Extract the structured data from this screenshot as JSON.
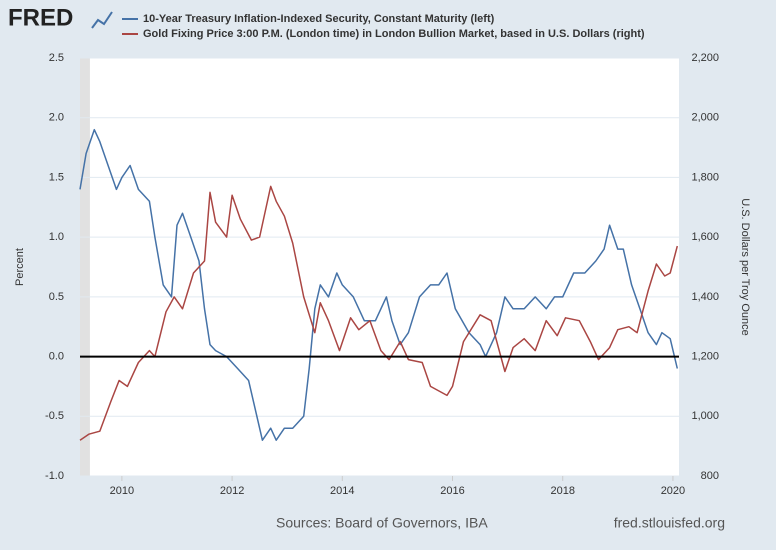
{
  "logo": "FRED",
  "sources": "Sources: Board of Governors, IBA",
  "site": "fred.stlouisfed.org",
  "chart_data": {
    "type": "line",
    "ylabel": "Percent",
    "y2label": "U.S. Dollars per Troy Ounce",
    "xlim": [
      2009.24,
      2020.11
    ],
    "xticks": [
      2010,
      2012,
      2014,
      2016,
      2018,
      2020
    ],
    "ylim": [
      -1.0,
      2.5
    ],
    "yticks": [
      {
        "value": -1.0,
        "label": "-1.0"
      },
      {
        "value": -0.5,
        "label": "-0.5"
      },
      {
        "value": 0,
        "label": "0.0"
      },
      {
        "value": 0.5,
        "label": "0.5"
      },
      {
        "value": 1.0,
        "label": "1.0"
      },
      {
        "value": 1.5,
        "label": "1.5"
      },
      {
        "value": 2.0,
        "label": "2.0"
      },
      {
        "value": 2.5,
        "label": "2.5"
      }
    ],
    "y2lim": [
      800,
      2200
    ],
    "y2ticks": [
      800,
      {
        "value": 1000,
        "label": "1,000"
      },
      {
        "value": 1200,
        "label": "1,200"
      },
      {
        "value": 1400,
        "label": "1,400"
      },
      {
        "value": 1600,
        "label": "1,600"
      },
      {
        "value": 1800,
        "label": "1,800"
      },
      {
        "value": 2000,
        "label": "2,000"
      },
      {
        "value": 2200,
        "label": "2,200"
      }
    ],
    "grid": true,
    "hline": {
      "value": 0,
      "color": "#000000"
    },
    "shading": [
      {
        "start": 2009.24,
        "end": 2009.42,
        "color": "#e1e1e1"
      }
    ],
    "series": [
      {
        "name": "10-Year Treasury Inflation-Indexed Security, Constant Maturity (left)",
        "color": "#4572a7",
        "x": [
          2009.24,
          2009.35,
          2009.5,
          2009.6,
          2009.75,
          2009.9,
          2010.0,
          2010.15,
          2010.3,
          2010.5,
          2010.6,
          2010.75,
          2010.9,
          2011.0,
          2011.1,
          2011.25,
          2011.4,
          2011.5,
          2011.6,
          2011.7,
          2011.9,
          2012.1,
          2012.3,
          2012.4,
          2012.55,
          2012.7,
          2012.8,
          2012.95,
          2013.1,
          2013.3,
          2013.4,
          2013.5,
          2013.6,
          2013.75,
          2013.9,
          2014.0,
          2014.2,
          2014.4,
          2014.6,
          2014.8,
          2014.9,
          2015.05,
          2015.2,
          2015.4,
          2015.6,
          2015.75,
          2015.9,
          2016.05,
          2016.3,
          2016.5,
          2016.6,
          2016.8,
          2016.95,
          2017.1,
          2017.3,
          2017.5,
          2017.7,
          2017.85,
          2018.0,
          2018.2,
          2018.4,
          2018.6,
          2018.75,
          2018.85,
          2019.0,
          2019.1,
          2019.25,
          2019.4,
          2019.55,
          2019.7,
          2019.8,
          2019.95,
          2020.08
        ],
        "values": [
          1.4,
          1.7,
          1.9,
          1.8,
          1.6,
          1.4,
          1.5,
          1.6,
          1.4,
          1.3,
          1.0,
          0.6,
          0.5,
          1.1,
          1.2,
          1.0,
          0.8,
          0.4,
          0.1,
          0.05,
          0.0,
          -0.1,
          -0.2,
          -0.4,
          -0.7,
          -0.6,
          -0.7,
          -0.6,
          -0.6,
          -0.5,
          -0.1,
          0.4,
          0.6,
          0.5,
          0.7,
          0.6,
          0.5,
          0.3,
          0.3,
          0.5,
          0.3,
          0.1,
          0.2,
          0.5,
          0.6,
          0.6,
          0.7,
          0.4,
          0.2,
          0.1,
          0.0,
          0.2,
          0.5,
          0.4,
          0.4,
          0.5,
          0.4,
          0.5,
          0.5,
          0.7,
          0.7,
          0.8,
          0.9,
          1.1,
          0.9,
          0.9,
          0.6,
          0.4,
          0.2,
          0.1,
          0.2,
          0.15,
          -0.1
        ]
      },
      {
        "name": "Gold Fixing Price 3:00 P.M. (London time) in London Bullion Market, based in U.S. Dollars (right)",
        "color": "#aa4643",
        "axis": "y2",
        "x": [
          2009.24,
          2009.4,
          2009.6,
          2009.8,
          2009.95,
          2010.1,
          2010.3,
          2010.5,
          2010.6,
          2010.8,
          2010.95,
          2011.1,
          2011.3,
          2011.5,
          2011.6,
          2011.7,
          2011.9,
          2012.0,
          2012.15,
          2012.35,
          2012.5,
          2012.7,
          2012.8,
          2012.95,
          2013.1,
          2013.3,
          2013.5,
          2013.6,
          2013.75,
          2013.95,
          2014.15,
          2014.3,
          2014.5,
          2014.7,
          2014.85,
          2015.05,
          2015.2,
          2015.45,
          2015.6,
          2015.9,
          2016.0,
          2016.2,
          2016.5,
          2016.7,
          2016.95,
          2017.1,
          2017.3,
          2017.5,
          2017.7,
          2017.9,
          2018.05,
          2018.3,
          2018.5,
          2018.65,
          2018.85,
          2019.0,
          2019.2,
          2019.35,
          2019.55,
          2019.7,
          2019.85,
          2019.95,
          2020.08
        ],
        "values": [
          920,
          940,
          950,
          1050,
          1120,
          1100,
          1180,
          1220,
          1200,
          1350,
          1400,
          1360,
          1480,
          1520,
          1750,
          1650,
          1600,
          1740,
          1660,
          1590,
          1600,
          1770,
          1720,
          1670,
          1580,
          1400,
          1280,
          1380,
          1320,
          1220,
          1330,
          1290,
          1320,
          1220,
          1190,
          1250,
          1190,
          1180,
          1100,
          1070,
          1100,
          1250,
          1340,
          1320,
          1150,
          1230,
          1260,
          1220,
          1320,
          1270,
          1330,
          1320,
          1250,
          1190,
          1230,
          1290,
          1300,
          1280,
          1420,
          1510,
          1470,
          1480,
          1570
        ]
      }
    ]
  }
}
